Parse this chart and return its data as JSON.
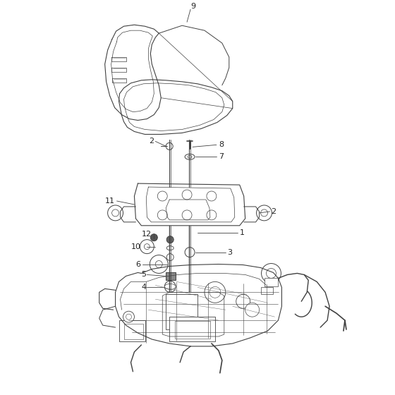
{
  "bg_color": "#ffffff",
  "line_color": "#404040",
  "figsize": [
    5.6,
    5.6
  ],
  "dpi": 100,
  "seat_color": "#d8d8d8",
  "bracket_color": "#e8e8e8"
}
